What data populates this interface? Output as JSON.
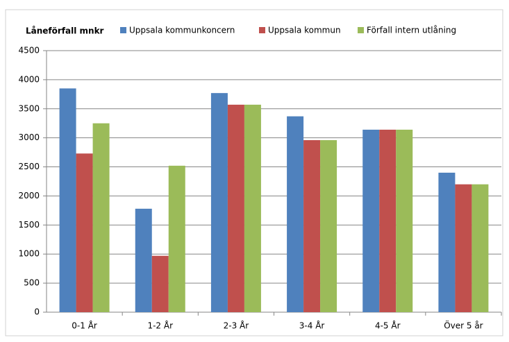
{
  "chart_data": {
    "type": "bar",
    "title": "Låneförfall mnkr",
    "categories": [
      "0-1 År",
      "1-2 År",
      "2-3 År",
      "3-4 År",
      "4-5 År",
      "Över 5 år"
    ],
    "series": [
      {
        "name": "Uppsala kommunkoncern",
        "color": "#4f81bd",
        "values": [
          3850,
          1780,
          3770,
          3370,
          3140,
          2400
        ]
      },
      {
        "name": "Uppsala kommun",
        "color": "#c0504d",
        "values": [
          2730,
          970,
          3570,
          2960,
          3140,
          2200
        ]
      },
      {
        "name": "Förfall intern utlåning",
        "color": "#9bbb59",
        "values": [
          3250,
          2520,
          3570,
          2960,
          3140,
          2200
        ]
      }
    ],
    "ylim": [
      0,
      4500
    ],
    "yticks": [
      0,
      500,
      1000,
      1500,
      2000,
      2500,
      3000,
      3500,
      4000,
      4500
    ],
    "grid": true
  }
}
